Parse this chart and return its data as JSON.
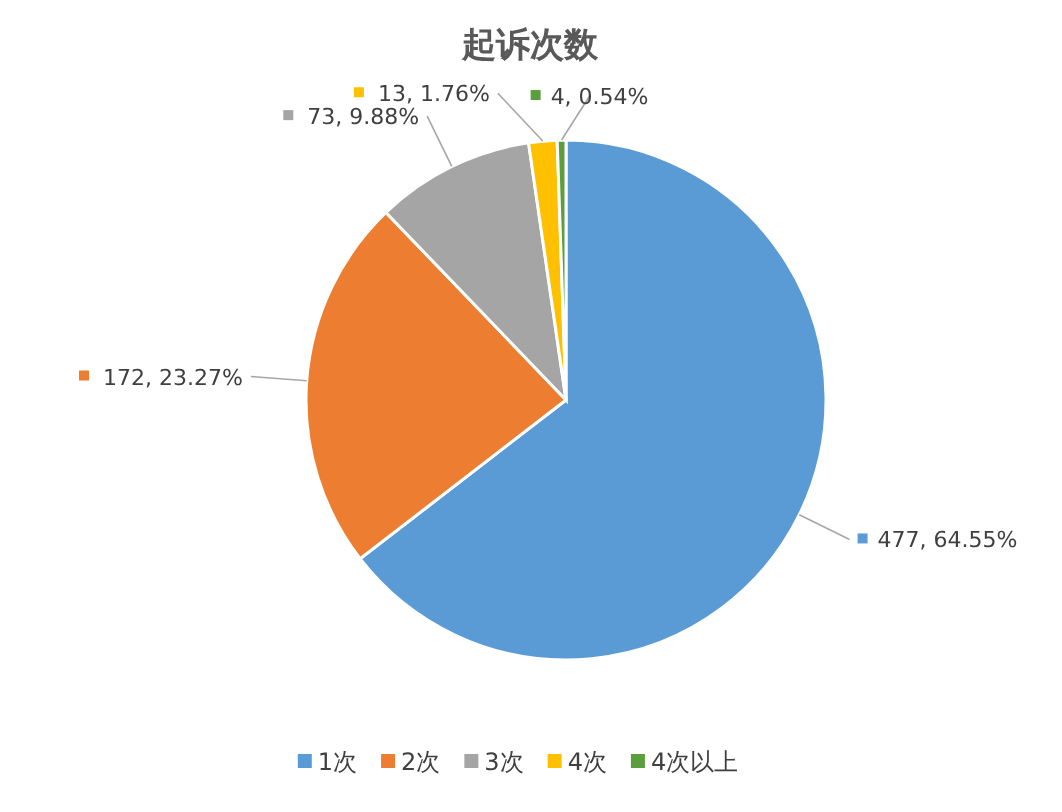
{
  "chart_data": {
    "type": "pie",
    "title": "起诉次数",
    "categories": [
      "1次",
      "2次",
      "3次",
      "4次",
      "4次以上"
    ],
    "values": [
      477,
      172,
      73,
      13,
      4
    ],
    "colors": [
      "#5b9bd5",
      "#ed7d31",
      "#a5a5a5",
      "#ffc000",
      "#5a9e3e"
    ],
    "value_labels": [
      "477, 64.55%",
      "172, 23.27%",
      "73, 9.88%",
      "13, 1.76%",
      "4, 0.54%"
    ],
    "legend": "bottom"
  }
}
